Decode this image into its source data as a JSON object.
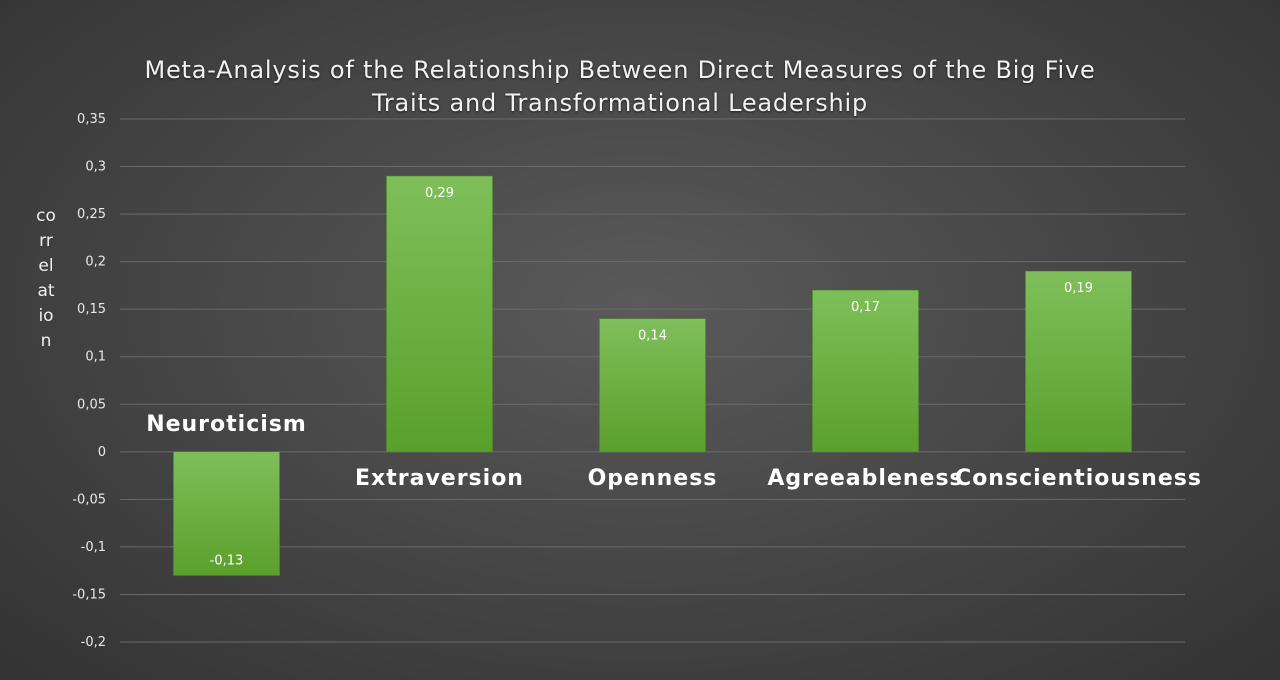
{
  "chart_data": {
    "type": "bar",
    "title": "Meta-Analysis of the Relationship Between Direct Measures of the Big Five\nTraits and Transformational Leadership",
    "xlabel": "",
    "ylabel": "correlation",
    "categories": [
      "Neuroticism",
      "Extraversion",
      "Openness",
      "Agreeableness",
      "Conscientiousness"
    ],
    "values": [
      -0.13,
      0.29,
      0.14,
      0.17,
      0.19
    ],
    "data_labels": [
      "-0,13",
      "0,29",
      "0,14",
      "0,17",
      "0,19"
    ],
    "ylim": [
      -0.2,
      0.35
    ],
    "y_ticks": [
      0.35,
      0.3,
      0.25,
      0.2,
      0.15,
      0.1,
      0.05,
      0,
      -0.05,
      -0.1,
      -0.15,
      -0.2
    ],
    "y_tick_labels": [
      "0,35",
      "0,3",
      "0,25",
      "0,2",
      "0,15",
      "0,1",
      "0,05",
      "0",
      "-0,05",
      "-0,1",
      "-0,15",
      "-0,2"
    ],
    "grid": true,
    "legend": "none",
    "bar_color_top": "#7fbf5a",
    "bar_color_bottom": "#5aa02c",
    "grid_color": "#6a6a6a"
  }
}
